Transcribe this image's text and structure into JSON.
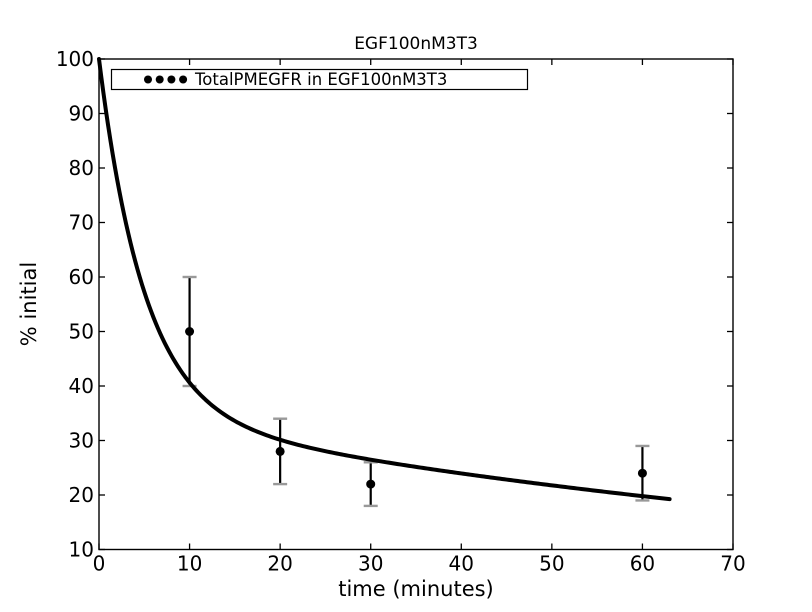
{
  "figure": {
    "background": "#ffffff"
  },
  "chart_data": {
    "type": "line",
    "title": "EGF100nM3T3",
    "xlabel": "time (minutes)",
    "ylabel": "% initial",
    "xlim": [
      0,
      70
    ],
    "ylim": [
      10,
      100
    ],
    "xticks": [
      0,
      10,
      20,
      30,
      40,
      50,
      60,
      70
    ],
    "yticks": [
      10,
      20,
      30,
      40,
      50,
      60,
      70,
      80,
      90,
      100
    ],
    "grid": false,
    "legend": {
      "position": "upper left",
      "entries": [
        {
          "label": "TotalPMEGFR in EGF100nM3T3",
          "marker": "four-dots",
          "marker_color": "#000000"
        }
      ]
    },
    "series": [
      {
        "name": "TotalPMEGFR in EGF100nM3T3",
        "plot_type": "errorbar-points",
        "x": [
          10,
          20,
          30,
          60
        ],
        "y": [
          50,
          28,
          22,
          24
        ],
        "yerr": [
          10,
          6,
          4,
          5
        ],
        "marker": "filled-circle",
        "marker_color": "#000000",
        "bar_color": "#000000",
        "cap_color": "#999999"
      },
      {
        "name": "fit-curve",
        "plot_type": "curve",
        "model": "biexponential",
        "params": {
          "A": 65,
          "k1": 0.2,
          "B": 35,
          "k2": 0.0095
        },
        "t_range": [
          0,
          63
        ],
        "color": "#000000",
        "linewidth": 4
      }
    ],
    "colors": {
      "axes": "#000000",
      "text": "#000000",
      "errorbar_cap": "#999999",
      "background": "#ffffff"
    }
  }
}
